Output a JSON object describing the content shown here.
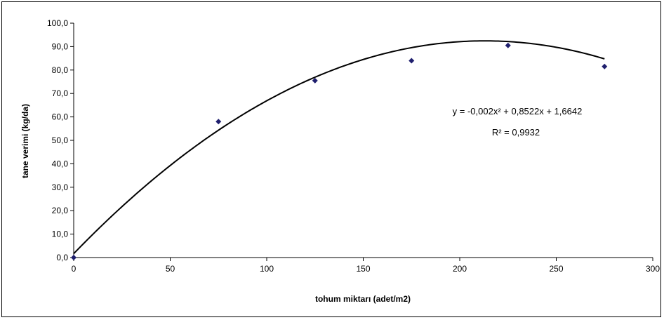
{
  "chart_data": {
    "type": "scatter",
    "xlabel": "tohum miktarı (adet/m2)",
    "ylabel": "tane verimi (kg/da)",
    "xlim": [
      0,
      300
    ],
    "ylim": [
      0,
      100
    ],
    "x_ticks": [
      "0",
      "50",
      "100",
      "150",
      "200",
      "250",
      "300"
    ],
    "y_ticks": [
      "0,0",
      "10,0",
      "20,0",
      "30,0",
      "40,0",
      "50,0",
      "60,0",
      "70,0",
      "80,0",
      "90,0",
      "100,0"
    ],
    "grid": false,
    "points": [
      {
        "x": 0,
        "y": 0
      },
      {
        "x": 75,
        "y": 58
      },
      {
        "x": 125,
        "y": 75.5
      },
      {
        "x": 175,
        "y": 84
      },
      {
        "x": 225,
        "y": 90.5
      },
      {
        "x": 275,
        "y": 81.5
      }
    ],
    "trendline": {
      "type": "polynomial",
      "coefficients": [
        -0.002,
        0.8522,
        1.6642
      ],
      "equation_label": "y = -0,002x² + 0,8522x + 1,6642",
      "r2_label": "R² = 0,9932",
      "color": "#000000"
    },
    "marker_color": "#1F1F6E"
  }
}
